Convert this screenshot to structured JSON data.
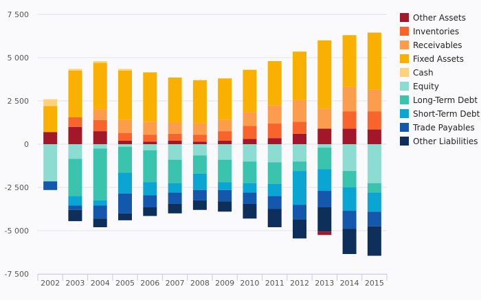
{
  "chart_data": {
    "type": "bar",
    "stacked": true,
    "categories": [
      "2002",
      "2003",
      "2004",
      "2005",
      "2006",
      "2007",
      "2008",
      "2009",
      "2010",
      "2011",
      "2012",
      "2013",
      "2014",
      "2015"
    ],
    "ylim": [
      -7500,
      7500
    ],
    "yticks": [
      -7500,
      -5000,
      -2500,
      0,
      2500,
      5000,
      7500
    ],
    "ytick_labels": [
      "-7 500",
      "-5 000",
      "-2 500",
      "0",
      "2 500",
      "5 000",
      "7 500"
    ],
    "grid": true,
    "legend_position": "right",
    "series": [
      {
        "name": "Other Assets",
        "color": "#a3172b",
        "values": [
          700,
          1000,
          750,
          200,
          150,
          200,
          150,
          200,
          300,
          350,
          600,
          900,
          900,
          850
        ]
      },
      {
        "name": "Inventories",
        "color": "#f7652d",
        "values": [
          0,
          550,
          650,
          450,
          400,
          400,
          400,
          550,
          750,
          850,
          700,
          0,
          1000,
          1050
        ]
      },
      {
        "name": "Receivables",
        "color": "#fc9d4e",
        "values": [
          0,
          0,
          600,
          750,
          750,
          650,
          650,
          650,
          800,
          1050,
          1250,
          1150,
          1400,
          1250
        ]
      },
      {
        "name": "Fixed Assets",
        "color": "#f9b000",
        "values": [
          1500,
          2700,
          2700,
          2850,
          2850,
          2600,
          2500,
          2400,
          2450,
          2550,
          2800,
          3950,
          3000,
          3300
        ]
      },
      {
        "name": "Cash",
        "color": "#fdd27d",
        "values": [
          400,
          100,
          100,
          100,
          0,
          0,
          0,
          0,
          0,
          0,
          0,
          0,
          0,
          0
        ]
      },
      {
        "name": "Equity",
        "color": "#8ddcd2",
        "values": [
          -2150,
          -850,
          -250,
          -150,
          -350,
          -900,
          -650,
          -900,
          -1000,
          -1050,
          -1000,
          -200,
          -1550,
          -2250
        ]
      },
      {
        "name": "Long-Term Debt",
        "color": "#3bc4ad",
        "values": [
          0,
          -2150,
          -3000,
          -1500,
          -1850,
          -1350,
          -1050,
          -1300,
          -1250,
          -1250,
          -550,
          -1250,
          -950,
          -550
        ]
      },
      {
        "name": "Short-Term Debt",
        "color": "#0ba5d3",
        "values": [
          0,
          -550,
          -300,
          -1200,
          -750,
          -550,
          -950,
          -450,
          -550,
          -700,
          -1950,
          -1250,
          -1350,
          -1100
        ]
      },
      {
        "name": "Trade Payables",
        "color": "#1458ad",
        "values": [
          -500,
          -250,
          -750,
          -1150,
          -700,
          -650,
          -600,
          -650,
          -650,
          -750,
          -850,
          -950,
          -1050,
          -850
        ]
      },
      {
        "name": "Other Liabilities",
        "color": "#0e2f5a",
        "values": [
          0,
          -650,
          -500,
          -400,
          -500,
          -550,
          -550,
          -600,
          -850,
          -1050,
          -1100,
          -1400,
          -1450,
          -1700
        ]
      },
      {
        "name": "Negative Other Assets",
        "color": "#a3172b",
        "values": [
          0,
          0,
          0,
          0,
          0,
          0,
          0,
          0,
          0,
          0,
          0,
          -200,
          0,
          0
        ],
        "hide_in_legend": true
      }
    ]
  }
}
